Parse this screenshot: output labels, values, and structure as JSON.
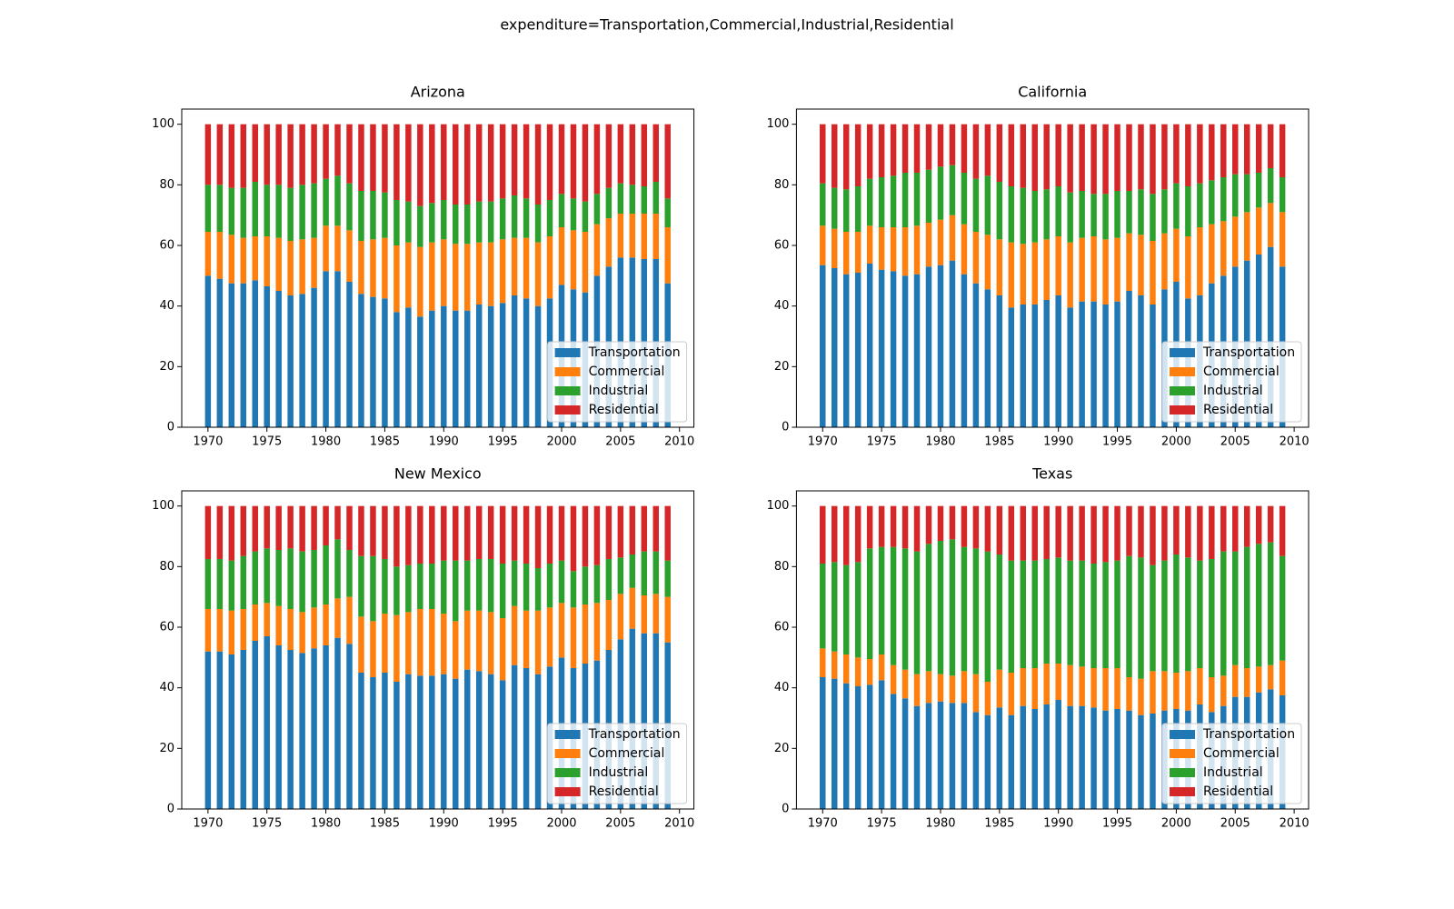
{
  "title": "expenditure=Transportation,Commercial,Industrial,Residential",
  "chart_data": [
    {
      "type": "bar",
      "stacked": true,
      "title": "Arizona",
      "legend": "lower right",
      "x": [
        1970,
        1971,
        1972,
        1973,
        1974,
        1975,
        1976,
        1977,
        1978,
        1979,
        1980,
        1981,
        1982,
        1983,
        1984,
        1985,
        1986,
        1987,
        1988,
        1989,
        1990,
        1991,
        1992,
        1993,
        1994,
        1995,
        1996,
        1997,
        1998,
        1999,
        2000,
        2001,
        2002,
        2003,
        2004,
        2005,
        2006,
        2007,
        2008,
        2009
      ],
      "xlim": [
        1967.775,
        2011.225
      ],
      "xticks": [
        1970,
        1975,
        1980,
        1985,
        1990,
        1995,
        2000,
        2005,
        2010
      ],
      "ylim": [
        0,
        105
      ],
      "yticks": [
        0,
        20,
        40,
        60,
        80,
        100
      ],
      "series": [
        {
          "name": "Transportation",
          "color": "#1f77b4",
          "values": [
            50,
            49,
            47.5,
            47.5,
            48.5,
            46.5,
            45,
            43.5,
            44,
            46,
            51.5,
            51.5,
            48,
            44,
            43,
            42.5,
            38,
            39.5,
            36.5,
            38.5,
            40,
            38.5,
            38.5,
            40.5,
            40,
            41,
            43.5,
            42.5,
            40,
            42.5,
            47,
            45.5,
            44.5,
            50,
            53,
            56,
            56,
            55.5,
            55.5,
            47.5
          ]
        },
        {
          "name": "Commercial",
          "color": "#ff7f0e",
          "values": [
            14.5,
            15.5,
            16,
            15,
            14.5,
            16.5,
            17.5,
            18,
            18,
            16.5,
            15,
            15,
            17,
            17.5,
            19,
            20,
            22,
            21.5,
            23,
            22.5,
            22,
            22,
            22,
            20.5,
            21,
            21,
            19,
            20,
            21,
            20.5,
            19,
            19.5,
            20,
            17,
            16,
            14.5,
            14.5,
            15,
            15,
            18.5
          ]
        },
        {
          "name": "Industrial",
          "color": "#2ca02c",
          "values": [
            15.5,
            15.5,
            15.5,
            16.5,
            18,
            17,
            17.5,
            17.5,
            18,
            18,
            15.5,
            16.5,
            15.5,
            16.5,
            16,
            15,
            15,
            13.5,
            13.5,
            13,
            13,
            13,
            13,
            13.5,
            13.5,
            13.5,
            14,
            13,
            12.5,
            12,
            11,
            10.5,
            10,
            10,
            10,
            10,
            9.5,
            9,
            10.5,
            9.5
          ]
        },
        {
          "name": "Residential",
          "color": "#d62728",
          "values": [
            20,
            20,
            21,
            21,
            19,
            20,
            20,
            21,
            20,
            19.5,
            18,
            17,
            19.5,
            22,
            22,
            22.5,
            25,
            25.5,
            27,
            26,
            25,
            26.5,
            26.5,
            25.5,
            25.5,
            24.5,
            23.5,
            24.5,
            26.5,
            25,
            23,
            24.5,
            25.5,
            23,
            21,
            19.5,
            20,
            20.5,
            19,
            24.5
          ]
        }
      ]
    },
    {
      "type": "bar",
      "stacked": true,
      "title": "California",
      "legend": "lower right",
      "x": [
        1970,
        1971,
        1972,
        1973,
        1974,
        1975,
        1976,
        1977,
        1978,
        1979,
        1980,
        1981,
        1982,
        1983,
        1984,
        1985,
        1986,
        1987,
        1988,
        1989,
        1990,
        1991,
        1992,
        1993,
        1994,
        1995,
        1996,
        1997,
        1998,
        1999,
        2000,
        2001,
        2002,
        2003,
        2004,
        2005,
        2006,
        2007,
        2008,
        2009
      ],
      "xlim": [
        1967.775,
        2011.225
      ],
      "xticks": [
        1970,
        1975,
        1980,
        1985,
        1990,
        1995,
        2000,
        2005,
        2010
      ],
      "ylim": [
        0,
        105
      ],
      "yticks": [
        0,
        20,
        40,
        60,
        80,
        100
      ],
      "series": [
        {
          "name": "Transportation",
          "color": "#1f77b4",
          "values": [
            53.5,
            52.5,
            50.5,
            51,
            54,
            52,
            51.5,
            50,
            50.5,
            53,
            53.5,
            55,
            50.5,
            47.5,
            45.5,
            43.5,
            39.5,
            40.5,
            40.5,
            42,
            43.5,
            39.5,
            41.5,
            41.5,
            40.5,
            41.5,
            45,
            43.5,
            40.5,
            45.5,
            48,
            42.5,
            43.5,
            47.5,
            50,
            53,
            55,
            57,
            59.5,
            53
          ]
        },
        {
          "name": "Commercial",
          "color": "#ff7f0e",
          "values": [
            13,
            13,
            14,
            13.5,
            12.5,
            14,
            14.5,
            16,
            16,
            14.5,
            15,
            15,
            16.5,
            17,
            18,
            18.5,
            21.5,
            20,
            20.5,
            20,
            19.5,
            21.5,
            21,
            21.5,
            21.5,
            21,
            19,
            20,
            21,
            18.5,
            17.5,
            20.5,
            22.5,
            19.5,
            18,
            16.5,
            16,
            15.5,
            14.5,
            18
          ]
        },
        {
          "name": "Industrial",
          "color": "#2ca02c",
          "values": [
            14,
            13.5,
            14,
            15,
            15.5,
            16.5,
            17,
            18,
            17.5,
            17.5,
            17.5,
            16.5,
            17,
            17.5,
            19.5,
            19,
            18.5,
            18.5,
            17,
            16.5,
            16.5,
            16.5,
            15.5,
            14,
            15,
            15.5,
            14,
            15,
            15.5,
            14.5,
            15,
            16.5,
            14.5,
            14.5,
            14.5,
            14,
            12.5,
            11.5,
            11.5,
            11.5
          ]
        },
        {
          "name": "Residential",
          "color": "#d62728",
          "values": [
            19.5,
            21,
            21.5,
            20.5,
            18,
            17.5,
            17,
            16,
            16,
            15,
            14,
            13.5,
            16,
            18,
            17,
            19,
            20.5,
            21,
            22,
            21.5,
            20.5,
            22.5,
            22,
            23,
            23,
            22,
            22,
            21.5,
            23,
            21.5,
            19.5,
            20.5,
            19.5,
            18.5,
            17.5,
            16.5,
            16.5,
            16,
            14.5,
            17.5
          ]
        }
      ]
    },
    {
      "type": "bar",
      "stacked": true,
      "title": "New Mexico",
      "legend": "lower right",
      "x": [
        1970,
        1971,
        1972,
        1973,
        1974,
        1975,
        1976,
        1977,
        1978,
        1979,
        1980,
        1981,
        1982,
        1983,
        1984,
        1985,
        1986,
        1987,
        1988,
        1989,
        1990,
        1991,
        1992,
        1993,
        1994,
        1995,
        1996,
        1997,
        1998,
        1999,
        2000,
        2001,
        2002,
        2003,
        2004,
        2005,
        2006,
        2007,
        2008,
        2009
      ],
      "xlim": [
        1967.775,
        2011.225
      ],
      "xticks": [
        1970,
        1975,
        1980,
        1985,
        1990,
        1995,
        2000,
        2005,
        2010
      ],
      "ylim": [
        0,
        105
      ],
      "yticks": [
        0,
        20,
        40,
        60,
        80,
        100
      ],
      "series": [
        {
          "name": "Transportation",
          "color": "#1f77b4",
          "values": [
            52,
            52,
            51,
            52.5,
            55.5,
            57,
            54,
            52.5,
            51.5,
            53,
            54,
            56.5,
            54.5,
            45,
            43.5,
            45,
            42,
            44.5,
            44,
            44,
            44.5,
            43,
            46,
            45.5,
            44.5,
            42.5,
            47.5,
            46.5,
            44.5,
            47,
            50,
            46.5,
            48,
            49,
            52.5,
            56,
            59.5,
            58,
            58,
            55
          ]
        },
        {
          "name": "Commercial",
          "color": "#ff7f0e",
          "values": [
            14,
            14,
            14.5,
            13.5,
            12,
            11,
            13,
            13.5,
            13.5,
            13.5,
            13.5,
            13,
            15.5,
            18.5,
            18.5,
            19.5,
            22,
            20.5,
            22,
            22,
            20,
            19,
            19.5,
            20,
            20.5,
            20.5,
            19.5,
            19,
            21,
            19.5,
            18,
            20,
            19.5,
            19,
            16.5,
            15,
            13.5,
            12.5,
            13,
            15
          ]
        },
        {
          "name": "Industrial",
          "color": "#2ca02c",
          "values": [
            16.5,
            16.5,
            16.5,
            17.5,
            17.5,
            18,
            18.5,
            20,
            20,
            19,
            19.5,
            19.5,
            15.5,
            20,
            21.5,
            18,
            16,
            15.5,
            15,
            15,
            17.5,
            20,
            16.5,
            17,
            17.5,
            18,
            15,
            15.5,
            14,
            14.5,
            14,
            12,
            12.5,
            12.5,
            13.5,
            12,
            11,
            14.5,
            14,
            12
          ]
        },
        {
          "name": "Residential",
          "color": "#d62728",
          "values": [
            17.5,
            17.5,
            18,
            16.5,
            15,
            14,
            14.5,
            14,
            15,
            14.5,
            13,
            11,
            14.5,
            16.5,
            16.5,
            17.5,
            20,
            19.5,
            19,
            19,
            18,
            18,
            18,
            17.5,
            17.5,
            19,
            18,
            19,
            20.5,
            19,
            18,
            21.5,
            20,
            19.5,
            17.5,
            17,
            16,
            15,
            15,
            18
          ]
        }
      ]
    },
    {
      "type": "bar",
      "stacked": true,
      "title": "Texas",
      "legend": "lower right",
      "x": [
        1970,
        1971,
        1972,
        1973,
        1974,
        1975,
        1976,
        1977,
        1978,
        1979,
        1980,
        1981,
        1982,
        1983,
        1984,
        1985,
        1986,
        1987,
        1988,
        1989,
        1990,
        1991,
        1992,
        1993,
        1994,
        1995,
        1996,
        1997,
        1998,
        1999,
        2000,
        2001,
        2002,
        2003,
        2004,
        2005,
        2006,
        2007,
        2008,
        2009
      ],
      "xlim": [
        1967.775,
        2011.225
      ],
      "xticks": [
        1970,
        1975,
        1980,
        1985,
        1990,
        1995,
        2000,
        2005,
        2010
      ],
      "ylim": [
        0,
        105
      ],
      "yticks": [
        0,
        20,
        40,
        60,
        80,
        100
      ],
      "series": [
        {
          "name": "Transportation",
          "color": "#1f77b4",
          "values": [
            43.5,
            43,
            41.5,
            40.5,
            41,
            42.5,
            38,
            36.5,
            34,
            35,
            35.5,
            35,
            35,
            32,
            31,
            33.5,
            31,
            34,
            33,
            34.5,
            36,
            34,
            34,
            33.5,
            32.5,
            33,
            32.5,
            31,
            31.5,
            32.5,
            33,
            32.5,
            34.5,
            32,
            34,
            37,
            37,
            38.5,
            39.5,
            37.5
          ]
        },
        {
          "name": "Commercial",
          "color": "#ff7f0e",
          "values": [
            9.5,
            9,
            9.5,
            9.5,
            8.5,
            8.5,
            9.5,
            9.5,
            10.5,
            10.5,
            9,
            9,
            10.5,
            12.5,
            11,
            12.5,
            14,
            12.5,
            13.5,
            13.5,
            12,
            13.5,
            13,
            13,
            14,
            13.5,
            11,
            12,
            14,
            13,
            12,
            13,
            12,
            11.5,
            10,
            10.5,
            9.5,
            8.5,
            8,
            11.5
          ]
        },
        {
          "name": "Industrial",
          "color": "#2ca02c",
          "values": [
            28,
            29.5,
            29.5,
            31.5,
            36.5,
            35.5,
            39,
            40,
            40.5,
            42,
            44,
            45,
            41,
            41.5,
            43,
            38,
            37,
            35.5,
            35.5,
            34.5,
            35,
            34.5,
            35,
            34.5,
            35,
            35.5,
            40,
            40,
            35,
            36.5,
            39,
            37.5,
            35.5,
            39,
            41,
            37.5,
            40,
            40.5,
            40.5,
            34.5
          ]
        },
        {
          "name": "Residential",
          "color": "#d62728",
          "values": [
            19,
            18.5,
            19.5,
            18.5,
            14,
            13.5,
            13.5,
            14,
            15,
            12.5,
            11.5,
            11,
            13.5,
            14,
            15,
            16,
            18,
            18,
            18,
            17.5,
            17,
            18,
            18,
            19,
            18.5,
            18,
            16.5,
            17,
            19.5,
            18,
            16,
            17,
            18,
            17.5,
            15,
            15,
            13.5,
            12.5,
            12,
            16.5
          ]
        }
      ]
    }
  ]
}
